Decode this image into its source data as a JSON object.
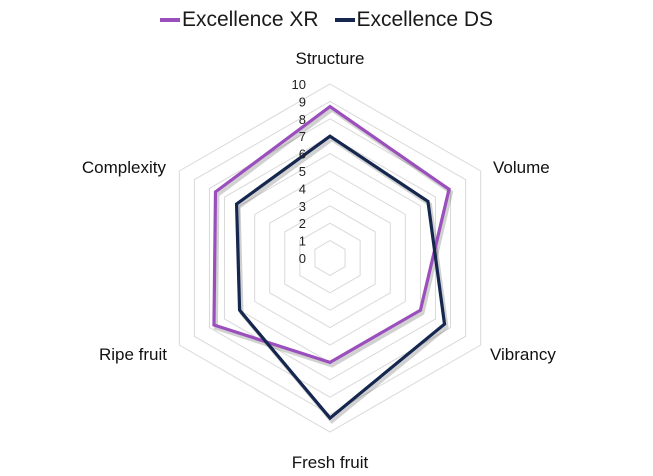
{
  "chart_data": {
    "type": "radar",
    "categories": [
      "Structure",
      "Volume",
      "Vibrancy",
      "Fresh fruit",
      "Ripe fruit",
      "Complexity"
    ],
    "series": [
      {
        "name": "Excellence XR",
        "values": [
          8.7,
          7.9,
          6.0,
          6.0,
          7.7,
          7.6
        ],
        "color": "#9b4fbd"
      },
      {
        "name": "Excellence DS",
        "values": [
          7.0,
          6.5,
          7.6,
          9.2,
          6.0,
          6.2
        ],
        "color": "#15264f"
      }
    ],
    "r_ticks": [
      "0",
      "1",
      "2",
      "3",
      "4",
      "5",
      "6",
      "7",
      "8",
      "9",
      "10"
    ],
    "rlim": [
      0,
      10
    ],
    "grid": true,
    "legend": "top"
  }
}
